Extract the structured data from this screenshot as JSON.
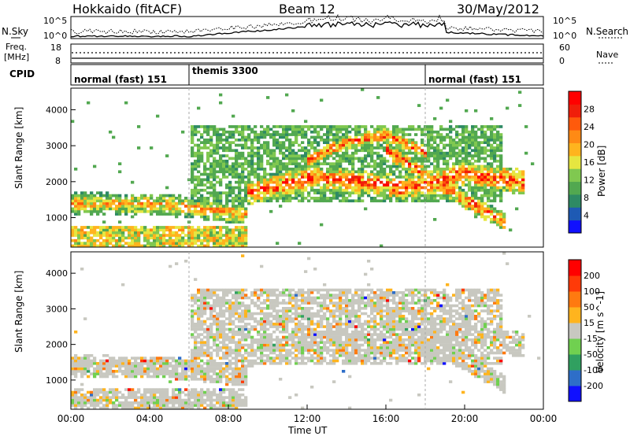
{
  "header": {
    "station": "Hokkaido (fitACF)",
    "beam": "Beam 12",
    "date": "30/May/2012"
  },
  "top_panel": {
    "left_label": "N.Sky",
    "right_label": "N.Search",
    "left_ticks": [
      "10^5",
      "10^0"
    ],
    "right_ticks": [
      "10^5",
      "10^0"
    ]
  },
  "freq_panel": {
    "left_label_1": "Freq.",
    "left_label_2": "[MHz]",
    "right_label": "Nave",
    "left_ticks": [
      "18",
      "8"
    ],
    "right_ticks": [
      "60",
      "0"
    ]
  },
  "cpid_panel": {
    "label": "CPID",
    "segments": [
      {
        "text": "normal (fast) 151",
        "start_hr": 0
      },
      {
        "text": "themis 3300",
        "start_hr": 6
      },
      {
        "text": "normal (fast) 151",
        "start_hr": 18
      }
    ]
  },
  "chart_data": [
    {
      "type": "heatmap",
      "name": "power",
      "ylabel": "Slant Range [km]",
      "xlabel": "",
      "ylim": [
        180,
        4600
      ],
      "xlim_hours": [
        0,
        24
      ],
      "yticks": [
        "1000",
        "2000",
        "3000",
        "4000"
      ],
      "colorbar_label": "Power [dB]",
      "colorbar_ticks": [
        "28",
        "24",
        "20",
        "16",
        "12",
        "8",
        "4"
      ],
      "colorbar_colors": [
        "#1010ff",
        "#1e5ab4",
        "#2e8a64",
        "#52a850",
        "#80c850",
        "#e6e640",
        "#ffb41e",
        "#ff8a14",
        "#ff5a0c",
        "#f01e0a",
        "#ff0000"
      ],
      "features": [
        {
          "desc": "band",
          "x": [
            0,
            4,
            6,
            9
          ],
          "y": [
            1400,
            1380,
            1300,
            1100
          ],
          "width": 300,
          "level": 0.7
        },
        {
          "desc": "band",
          "x": [
            9,
            12,
            15,
            17,
            20,
            23
          ],
          "y": [
            1700,
            2100,
            2000,
            1800,
            2200,
            2000
          ],
          "width": 350,
          "level": 0.92
        },
        {
          "desc": "arc",
          "x": [
            12,
            14,
            16,
            18
          ],
          "y": [
            2600,
            3100,
            3300,
            2800
          ],
          "width": 200,
          "level": 0.88
        },
        {
          "desc": "arc",
          "x": [
            16,
            18,
            20,
            22
          ],
          "y": [
            2900,
            2200,
            1500,
            900
          ],
          "width": 250,
          "level": 0.9
        }
      ]
    },
    {
      "type": "heatmap",
      "name": "velocity",
      "ylabel": "Slant Range [km]",
      "xlabel": "Time UT",
      "ylim": [
        180,
        4600
      ],
      "xlim_hours": [
        0,
        24
      ],
      "xticks": [
        "00:00",
        "04:00",
        "08:00",
        "12:00",
        "16:00",
        "20:00",
        "00:00"
      ],
      "yticks": [
        "1000",
        "2000",
        "3000",
        "4000"
      ],
      "colorbar_label": "Velocity [m s^-1]",
      "colorbar_ticks": [
        "200",
        "100",
        "50",
        "15",
        "-15",
        "-50",
        "-100",
        "-200"
      ],
      "colorbar_colors": [
        "#1010ff",
        "#2e6ec8",
        "#30a060",
        "#70d050",
        "#c8c8c0",
        "#ffb41e",
        "#ff7a10",
        "#ff3a08",
        "#ff0000"
      ]
    }
  ]
}
